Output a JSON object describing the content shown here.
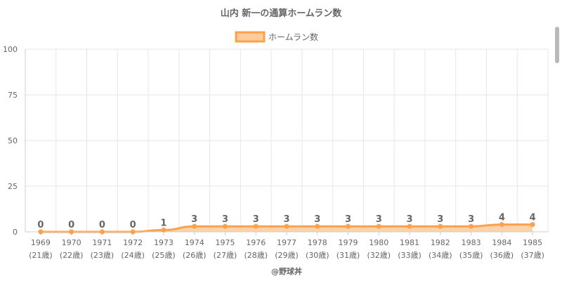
{
  "chart_data": {
    "type": "area",
    "title": "山内 新一の通算ホームラン数",
    "legend": {
      "entries": [
        "ホームラン数"
      ],
      "position": "top-center"
    },
    "categories": [
      "1969",
      "1970",
      "1971",
      "1972",
      "1973",
      "1974",
      "1975",
      "1976",
      "1977",
      "1978",
      "1979",
      "1980",
      "1981",
      "1982",
      "1983",
      "1984",
      "1985"
    ],
    "category_sublabels": [
      "(21歳)",
      "(22歳)",
      "(23歳)",
      "(24歳)",
      "(25歳)",
      "(26歳)",
      "(27歳)",
      "(28歳)",
      "(29歳)",
      "(30歳)",
      "(31歳)",
      "(32歳)",
      "(33歳)",
      "(34歳)",
      "(35歳)",
      "(36歳)",
      "(37歳)"
    ],
    "series": [
      {
        "name": "ホームラン数",
        "values": [
          0,
          0,
          0,
          0,
          1,
          3,
          3,
          3,
          3,
          3,
          3,
          3,
          3,
          3,
          3,
          4,
          4
        ]
      }
    ],
    "ylim": [
      0,
      100
    ],
    "yticks": [
      0,
      25,
      50,
      75,
      100
    ],
    "grid": true,
    "colors": {
      "line": "#ffa04d",
      "fill": "#ffcb9a",
      "point": "#ffa04d"
    }
  },
  "credit": "@野球丼"
}
